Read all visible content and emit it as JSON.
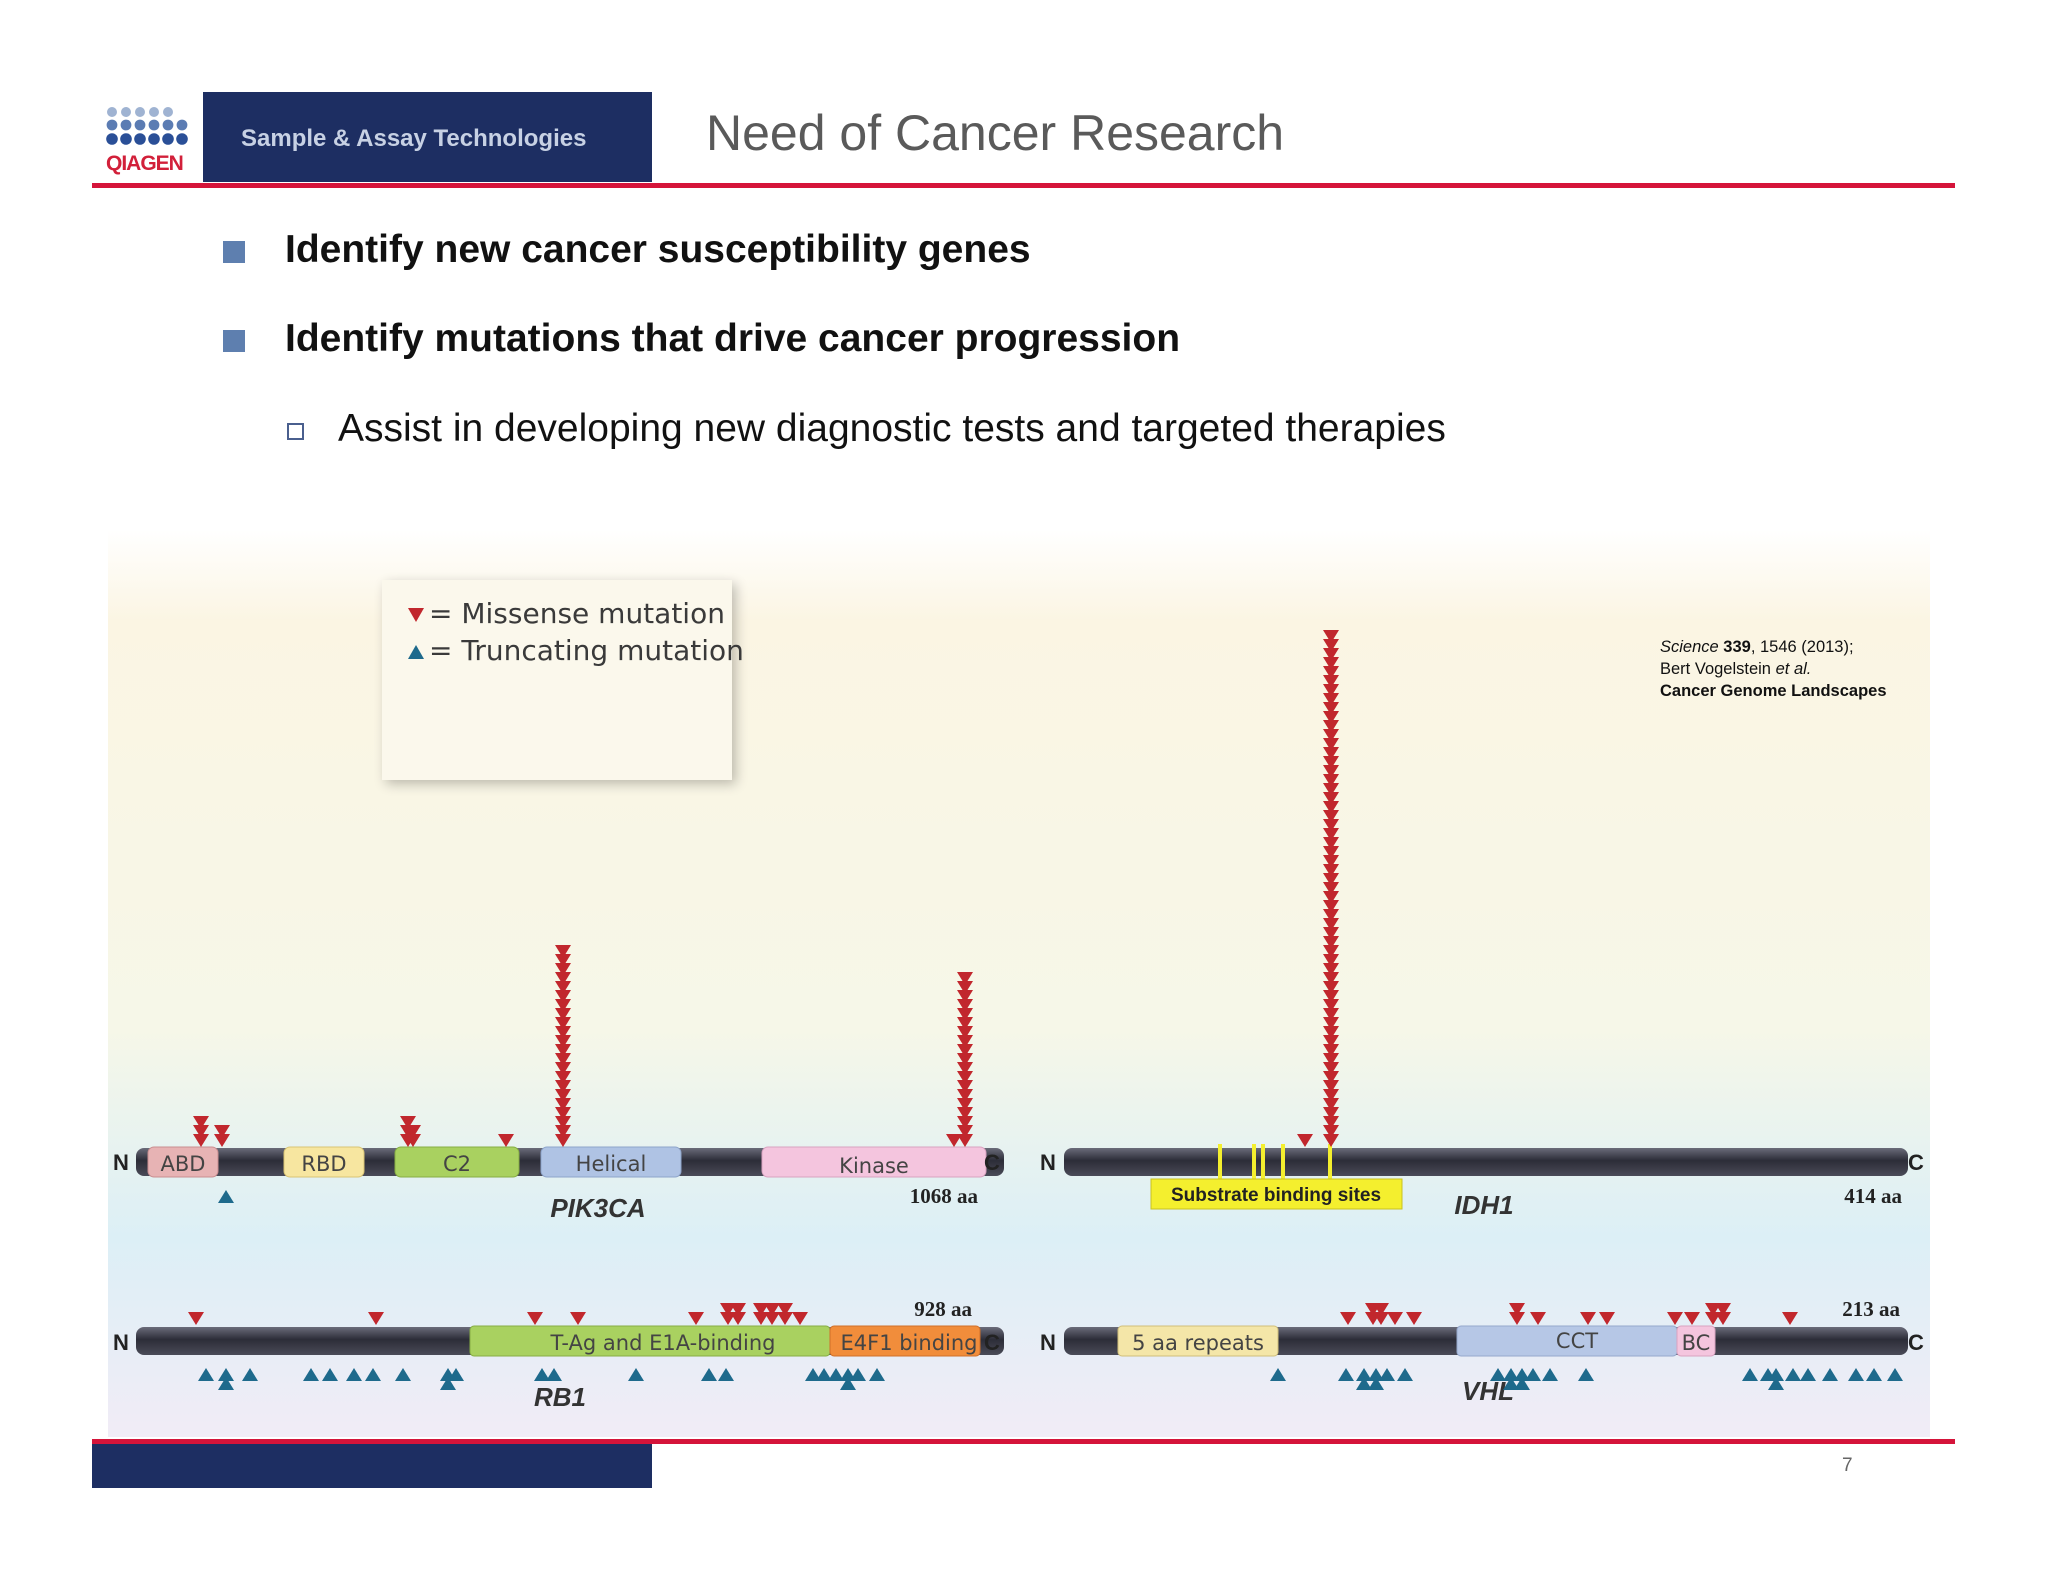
{
  "logo": {
    "text": "QIAGEN",
    "icon": "qiagen-dot-grid-logo"
  },
  "header": {
    "tagline": "Sample & Assay Technologies",
    "title": "Need of Cancer Research"
  },
  "bullets": [
    {
      "text": "Identify new cancer susceptibility genes"
    },
    {
      "text": "Identify mutations that drive cancer progression"
    }
  ],
  "sub_bullets": [
    {
      "text": "Assist in developing new diagnostic tests and targeted therapies"
    }
  ],
  "figure": {
    "legend": {
      "missense": "= Missense mutation",
      "truncating": "= Truncating mutation"
    },
    "citation": {
      "journal": "Science",
      "volume": "339",
      "pages_year": ", 1546 (2013);",
      "authors": "Bert Vogelstein",
      "et_al": "et al.",
      "article": "Cancer Genome Landscapes"
    },
    "terminus_n": "N",
    "terminus_c": "C",
    "genes": {
      "pik3ca": {
        "name": "PIK3CA",
        "length": "1068 aa",
        "domains": [
          "ABD",
          "RBD",
          "C2",
          "Helical",
          "Kinase"
        ]
      },
      "idh1": {
        "name": "IDH1",
        "length": "414 aa",
        "substrate_label": "Substrate binding sites"
      },
      "rb1": {
        "name": "RB1",
        "length": "928 aa",
        "domains": [
          "T-Ag and E1A-binding",
          "E4F1 binding"
        ]
      },
      "vhl": {
        "name": "VHL",
        "length": "213 aa",
        "domains": [
          "5 aa repeats",
          "CCT",
          "BC"
        ]
      }
    },
    "colors": {
      "missense": "#c1272d",
      "truncating": "#1e6a8c",
      "backbone": "#3c3d4a",
      "substrate": "#f4ef2e"
    }
  },
  "footer": {
    "page_number": "7"
  }
}
